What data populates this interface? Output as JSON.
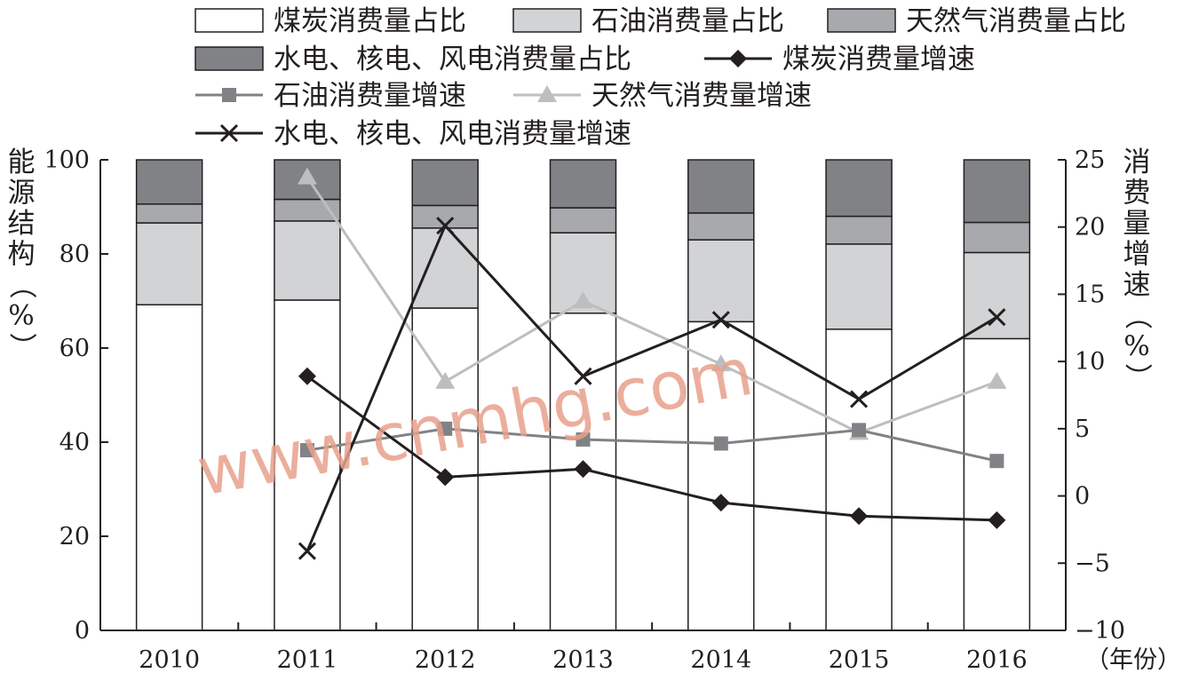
{
  "chart_data": {
    "type": "bar",
    "categories": [
      "2010",
      "2011",
      "2012",
      "2013",
      "2014",
      "2015",
      "2016"
    ],
    "stacked_series": [
      {
        "name": "煤炭消费量占比",
        "color": "#ffffff",
        "values": [
          69.2,
          70.2,
          68.5,
          67.4,
          65.6,
          64.0,
          62.0
        ]
      },
      {
        "name": "石油消费量占比",
        "color": "#d1d3d4",
        "values": [
          17.4,
          16.8,
          17.0,
          17.1,
          17.4,
          18.1,
          18.3
        ]
      },
      {
        "name": "天然气消费量占比",
        "color": "#a7a9ac",
        "values": [
          4.0,
          4.6,
          4.8,
          5.3,
          5.7,
          5.9,
          6.4
        ]
      },
      {
        "name": "水电、核电、风电消费量占比",
        "color": "#808285",
        "values": [
          9.4,
          8.4,
          9.7,
          10.2,
          11.3,
          12.0,
          13.3
        ]
      }
    ],
    "line_series": [
      {
        "name": "煤炭消费量增速",
        "marker": "diamond",
        "color": "#231f20",
        "x": [
          "2011",
          "2012",
          "2013",
          "2014",
          "2015",
          "2016"
        ],
        "values": [
          8.9,
          1.4,
          2.0,
          -0.5,
          -1.5,
          -1.8
        ]
      },
      {
        "name": "石油消费量增速",
        "marker": "square",
        "color": "#808285",
        "x": [
          "2011",
          "2012",
          "2013",
          "2014",
          "2015",
          "2016"
        ],
        "values": [
          3.4,
          5.0,
          4.2,
          3.9,
          4.9,
          2.6
        ]
      },
      {
        "name": "天然气消费量增速",
        "marker": "triangle",
        "color": "#bcbec0",
        "x": [
          "2011",
          "2012",
          "2013",
          "2014",
          "2015",
          "2016"
        ],
        "values": [
          23.7,
          8.5,
          14.5,
          9.8,
          4.7,
          8.5
        ]
      },
      {
        "name": "水电、核电、风电消费量增速",
        "marker": "cross",
        "color": "#231f20",
        "x": [
          "2011",
          "2012",
          "2013",
          "2014",
          "2015",
          "2016"
        ],
        "values": [
          -4.1,
          20.1,
          8.9,
          13.1,
          7.2,
          13.3
        ]
      }
    ],
    "y_left": {
      "label": "能源结构（%）",
      "range": [
        0,
        100
      ],
      "ticks": [
        "0",
        "20",
        "40",
        "60",
        "80",
        "100"
      ]
    },
    "y_right": {
      "label": "消费量增速（%）",
      "range": [
        -10,
        25
      ],
      "ticks": [
        "−10",
        "−5",
        "0",
        "5",
        "10",
        "15",
        "20",
        "25"
      ]
    },
    "x_label": "（年份）",
    "legend_position": "top",
    "grid": false,
    "watermark": "www.cnmhg.com"
  }
}
